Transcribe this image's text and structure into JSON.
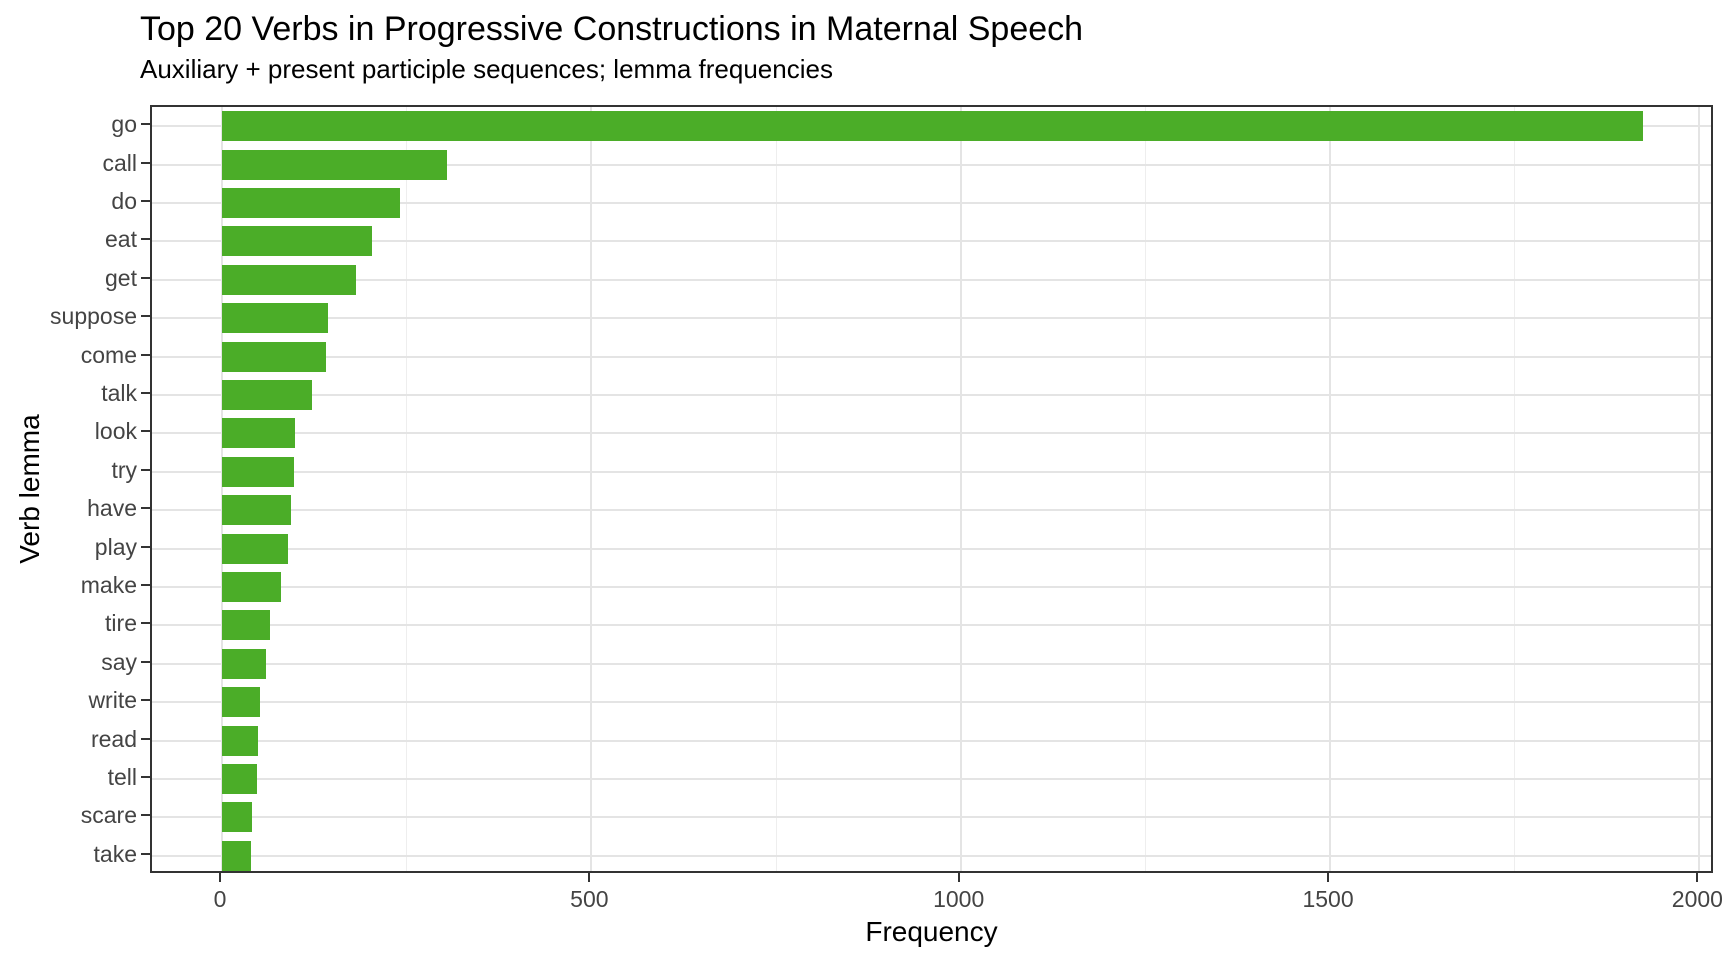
{
  "title": "Top 20 Verbs in Progressive Constructions in Maternal Speech",
  "subtitle": "Auxiliary + present participle sequences; lemma frequencies",
  "chart_data": {
    "type": "bar",
    "orientation": "horizontal",
    "title": "Top 20 Verbs in Progressive Constructions in Maternal Speech",
    "subtitle": "Auxiliary + present participle sequences; lemma frequencies",
    "xlabel": "Frequency",
    "ylabel": "Verb lemma",
    "categories": [
      "go",
      "call",
      "do",
      "eat",
      "get",
      "suppose",
      "come",
      "talk",
      "look",
      "try",
      "have",
      "play",
      "make",
      "tire",
      "say",
      "write",
      "read",
      "tell",
      "scare",
      "take"
    ],
    "values": [
      1923,
      305,
      241,
      203,
      182,
      144,
      141,
      122,
      99,
      98,
      93,
      90,
      80,
      65,
      59,
      52,
      49,
      48,
      40,
      39
    ],
    "xlim": [
      0,
      2000
    ],
    "x_ticks": [
      0,
      500,
      1000,
      1500,
      2000
    ],
    "x_tick_labels": [
      "0",
      "500",
      "1000",
      "1500",
      "2000"
    ],
    "x_minor_ticks": [
      250,
      750,
      1250,
      1750
    ],
    "grid": true,
    "legend": "none",
    "bar_color": "#4bad28",
    "panel_border_color": "#333333",
    "major_grid_color": "#e4e4e4",
    "minor_grid_color": "#eeeeee",
    "axis_text_color": "#444444",
    "title_color": "#000000"
  }
}
